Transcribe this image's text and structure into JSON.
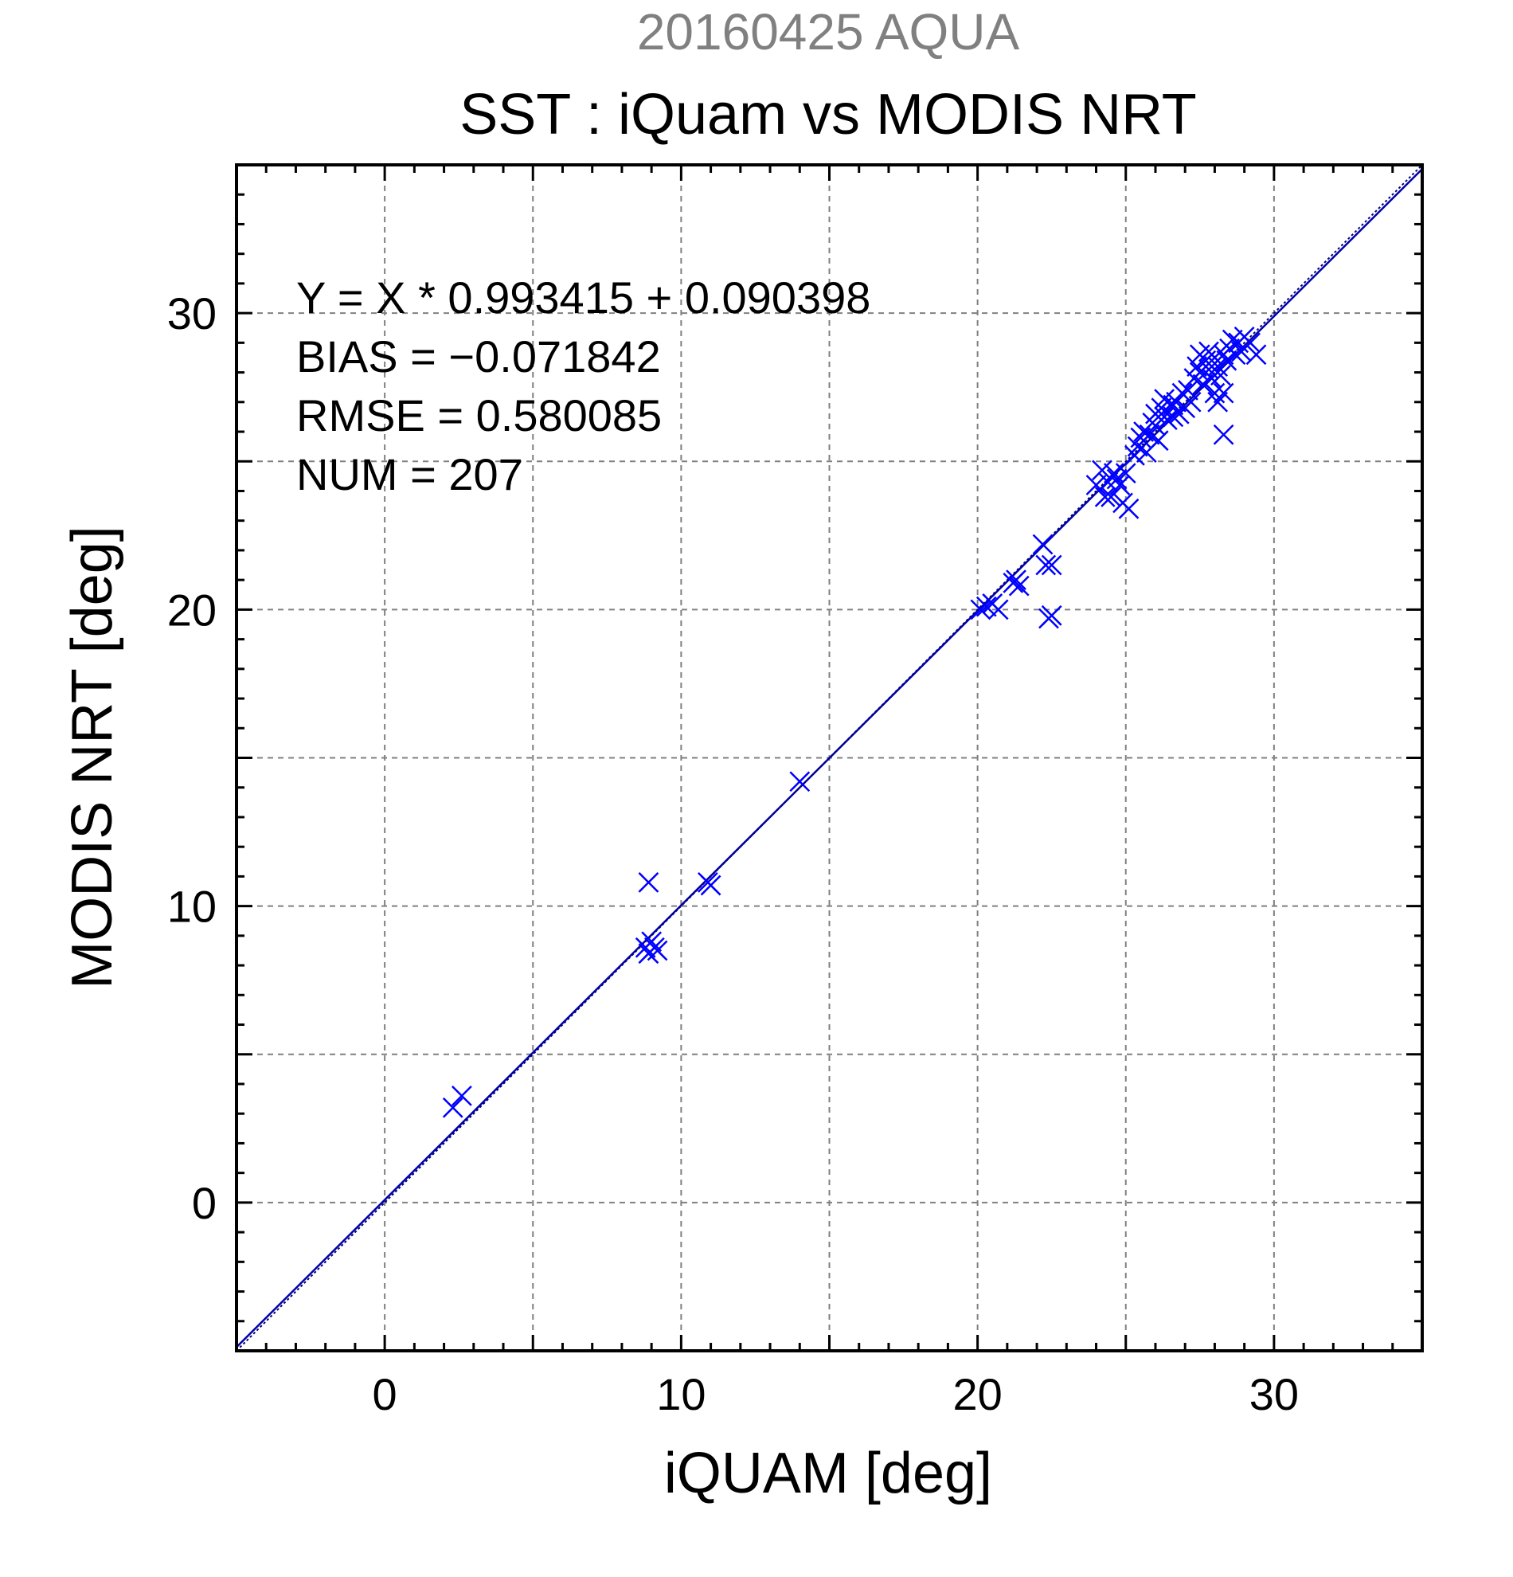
{
  "chart_data": {
    "type": "scatter",
    "title": "SST : iQuam vs MODIS NRT",
    "subtitle": "20160425 AQUA",
    "xlabel": "iQUAM [deg]",
    "ylabel": "MODIS NRT [deg]",
    "xlim": [
      -5,
      35
    ],
    "ylim": [
      -5,
      35
    ],
    "xticks": [
      0,
      10,
      20,
      30
    ],
    "yticks": [
      0,
      10,
      20,
      30
    ],
    "grid": true,
    "marker": "x",
    "colors": {
      "points": "#0000ff",
      "fit_line": "#0000aa",
      "subtitle": "#808080",
      "grid": "#808080"
    },
    "annotations": [
      "Y = X * 0.993415 + 0.090398",
      "BIAS = −0.071842",
      "RMSE = 0.580085",
      "NUM = 207"
    ],
    "fit": {
      "slope": 0.993415,
      "intercept": 0.090398
    },
    "series": [
      {
        "points": [
          [
            2.3,
            3.2
          ],
          [
            2.6,
            3.6
          ],
          [
            8.8,
            8.6
          ],
          [
            8.9,
            8.4
          ],
          [
            9.0,
            8.8
          ],
          [
            9.1,
            8.6
          ],
          [
            9.2,
            8.5
          ],
          [
            8.9,
            10.8
          ],
          [
            10.9,
            10.8
          ],
          [
            11.0,
            10.7
          ],
          [
            14.0,
            14.2
          ],
          [
            20.1,
            20.0
          ],
          [
            20.3,
            20.1
          ],
          [
            20.5,
            20.2
          ],
          [
            20.7,
            20.0
          ],
          [
            21.2,
            20.9
          ],
          [
            21.4,
            20.8
          ],
          [
            21.3,
            21.0
          ],
          [
            22.2,
            22.2
          ],
          [
            22.3,
            21.5
          ],
          [
            22.5,
            21.5
          ],
          [
            22.4,
            19.7
          ],
          [
            22.5,
            19.8
          ],
          [
            24.0,
            24.2
          ],
          [
            24.2,
            24.7
          ],
          [
            24.3,
            23.8
          ],
          [
            24.5,
            23.8
          ],
          [
            24.4,
            24.3
          ],
          [
            24.6,
            24.6
          ],
          [
            24.7,
            24.4
          ],
          [
            24.8,
            24.2
          ],
          [
            24.9,
            23.6
          ],
          [
            25.1,
            23.4
          ],
          [
            25.0,
            24.6
          ],
          [
            25.3,
            25.2
          ],
          [
            25.4,
            25.5
          ],
          [
            25.5,
            25.8
          ],
          [
            25.6,
            26.0
          ],
          [
            25.7,
            25.3
          ],
          [
            25.8,
            25.9
          ],
          [
            25.9,
            26.3
          ],
          [
            26.0,
            26.6
          ],
          [
            26.1,
            25.7
          ],
          [
            26.2,
            26.8
          ],
          [
            26.3,
            27.1
          ],
          [
            26.4,
            26.4
          ],
          [
            26.5,
            26.9
          ],
          [
            26.6,
            26.5
          ],
          [
            26.7,
            27.0
          ],
          [
            26.8,
            26.6
          ],
          [
            26.9,
            27.3
          ],
          [
            27.0,
            26.8
          ],
          [
            27.1,
            27.4
          ],
          [
            27.2,
            27.0
          ],
          [
            27.3,
            27.8
          ],
          [
            27.4,
            28.2
          ],
          [
            27.5,
            28.0
          ],
          [
            27.6,
            27.6
          ],
          [
            27.7,
            28.4
          ],
          [
            27.8,
            28.1
          ],
          [
            27.9,
            27.8
          ],
          [
            28.0,
            28.5
          ],
          [
            28.1,
            28.2
          ],
          [
            28.2,
            27.9
          ],
          [
            28.3,
            28.6
          ],
          [
            28.4,
            28.4
          ],
          [
            28.5,
            28.8
          ],
          [
            28.6,
            29.1
          ],
          [
            28.7,
            28.6
          ],
          [
            28.8,
            29.0
          ],
          [
            28.9,
            28.7
          ],
          [
            29.0,
            29.2
          ],
          [
            29.2,
            29.0
          ],
          [
            29.4,
            28.6
          ],
          [
            28.1,
            27.0
          ],
          [
            28.3,
            27.3
          ],
          [
            28.3,
            25.9
          ],
          [
            26.0,
            26.2
          ],
          [
            26.3,
            26.5
          ],
          [
            26.6,
            26.9
          ],
          [
            27.5,
            28.6
          ],
          [
            27.8,
            28.7
          ],
          [
            28.0,
            27.3
          ]
        ]
      }
    ]
  }
}
